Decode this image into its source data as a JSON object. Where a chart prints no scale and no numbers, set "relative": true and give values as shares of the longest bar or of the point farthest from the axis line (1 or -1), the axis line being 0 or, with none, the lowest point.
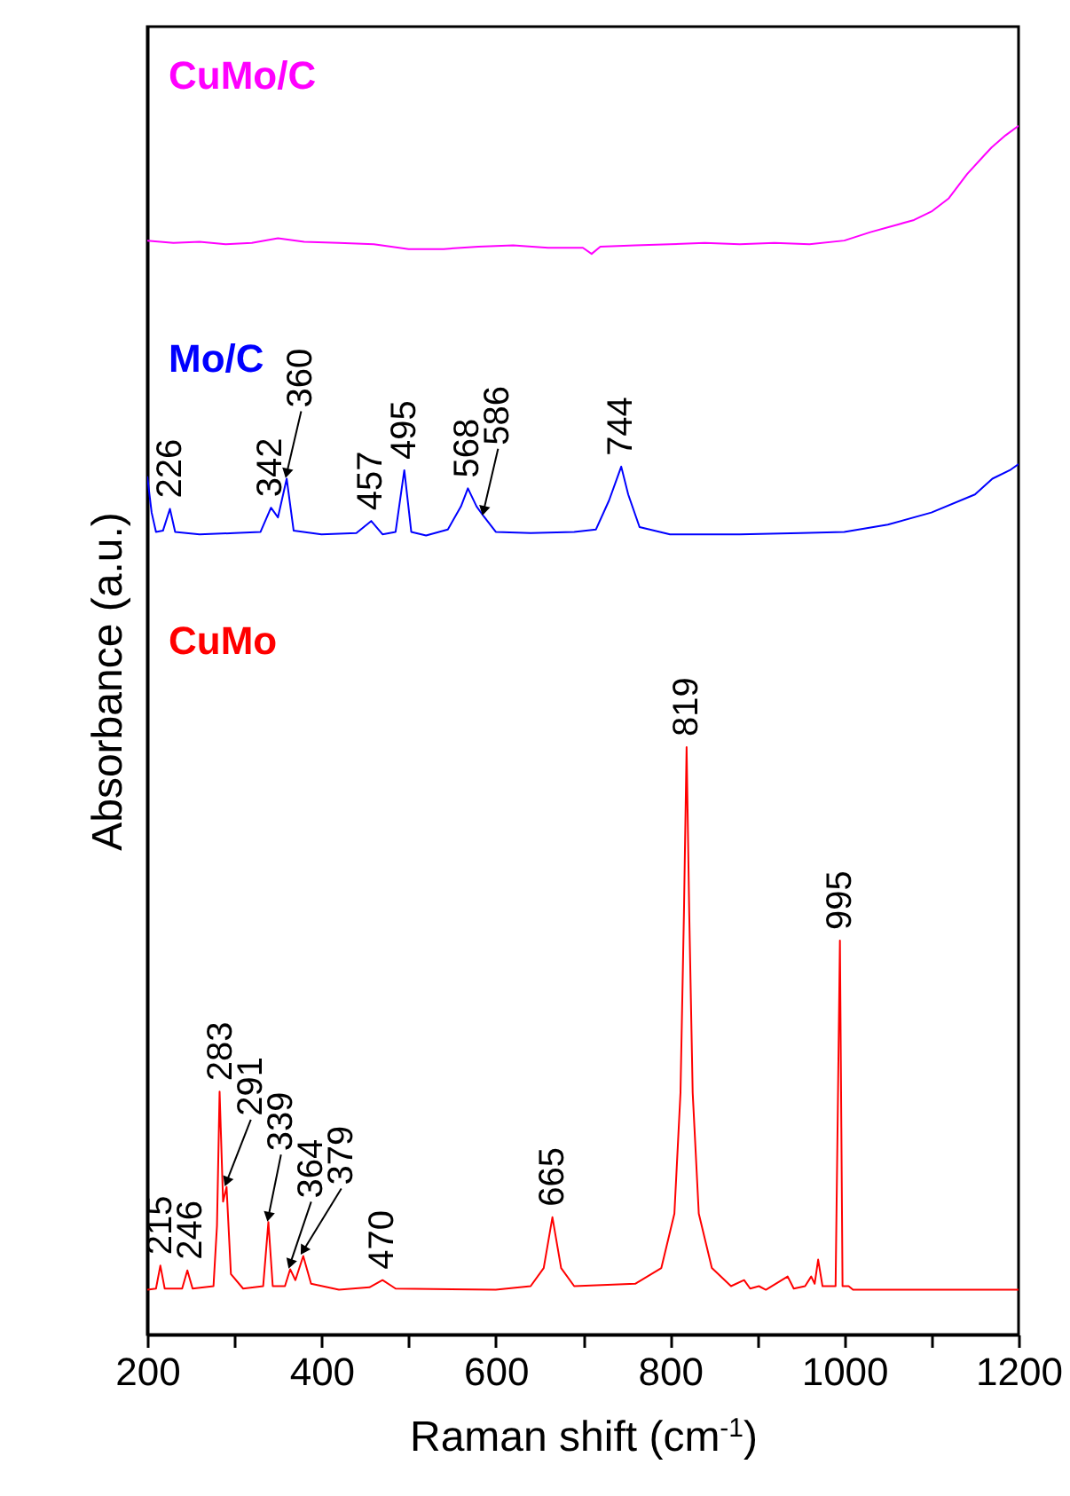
{
  "chart_data": {
    "type": "line",
    "xlabel": "Raman shift (cm$^{-1}$)",
    "ylabel": "Absorbance (a.u.)",
    "relative": true,
    "xlim": [
      200,
      1200
    ],
    "xticks": [
      200,
      {
        "value": 300,
        "label": null
      },
      400,
      {
        "value": 500,
        "label": null
      },
      600,
      {
        "value": 700,
        "label": null
      },
      800,
      {
        "value": 900,
        "label": null
      },
      1000,
      {
        "value": 1100,
        "label": null
      },
      1200
    ],
    "marker": "none",
    "line_style": "solid",
    "series": [
      {
        "name": "CuMo/C",
        "color": "#ff00ff",
        "x": [
          200,
          230,
          260,
          290,
          320,
          350,
          380,
          420,
          460,
          500,
          540,
          580,
          620,
          660,
          700,
          710,
          720,
          760,
          800,
          840,
          880,
          920,
          960,
          1000,
          1030,
          1060,
          1080,
          1100,
          1120,
          1141,
          1160,
          1169,
          1185,
          1200
        ],
        "values": [
          0.905,
          0.903,
          0.904,
          0.902,
          0.903,
          0.907,
          0.904,
          0.903,
          0.902,
          0.898,
          0.898,
          0.9,
          0.901,
          0.899,
          0.899,
          0.894,
          0.9,
          0.901,
          0.902,
          0.903,
          0.902,
          0.903,
          0.902,
          0.905,
          0.912,
          0.918,
          0.922,
          0.929,
          0.94,
          0.96,
          0.975,
          0.982,
          0.992,
          1.0
        ]
      },
      {
        "name": "Mo/C",
        "color": "#0000ff",
        "x": [
          200,
          205,
          210,
          218,
          226,
          232,
          260,
          300,
          330,
          342,
          350,
          360,
          368,
          400,
          440,
          457,
          470,
          485,
          495,
          503,
          520,
          545,
          560,
          568,
          578,
          586,
          600,
          640,
          690,
          715,
          730,
          744,
          752,
          765,
          800,
          880,
          950,
          1000,
          1050,
          1100,
          1150,
          1170,
          1190,
          1200
        ],
        "values": [
          0.71,
          0.68,
          0.664,
          0.665,
          0.683,
          0.664,
          0.662,
          0.663,
          0.664,
          0.684,
          0.676,
          0.708,
          0.665,
          0.662,
          0.663,
          0.673,
          0.662,
          0.664,
          0.715,
          0.664,
          0.661,
          0.666,
          0.685,
          0.7,
          0.685,
          0.677,
          0.664,
          0.663,
          0.664,
          0.666,
          0.69,
          0.718,
          0.695,
          0.668,
          0.662,
          0.662,
          0.663,
          0.664,
          0.67,
          0.68,
          0.695,
          0.708,
          0.715,
          0.72
        ]
      },
      {
        "name": "CuMo",
        "color": "#ff0000",
        "x": [
          200,
          210,
          215,
          220,
          240,
          246,
          252,
          276,
          280,
          283,
          287,
          291,
          296,
          310,
          333,
          339,
          344,
          358,
          364,
          370,
          379,
          388,
          420,
          455,
          470,
          485,
          600,
          640,
          655,
          665,
          675,
          690,
          760,
          790,
          805,
          812,
          816,
          819,
          822,
          826,
          833,
          848,
          870,
          885,
          892,
          902,
          910,
          935,
          942,
          955,
          962,
          966,
          970,
          975,
          990,
          995,
          998,
          1005,
          1010,
          1100,
          1200
        ],
        "values": [
          0.037,
          0.038,
          0.057,
          0.038,
          0.038,
          0.053,
          0.038,
          0.04,
          0.09,
          0.201,
          0.11,
          0.122,
          0.05,
          0.038,
          0.04,
          0.093,
          0.04,
          0.04,
          0.054,
          0.045,
          0.065,
          0.042,
          0.037,
          0.039,
          0.045,
          0.038,
          0.037,
          0.04,
          0.055,
          0.097,
          0.055,
          0.04,
          0.042,
          0.055,
          0.1,
          0.2,
          0.35,
          0.486,
          0.35,
          0.2,
          0.1,
          0.055,
          0.04,
          0.045,
          0.038,
          0.04,
          0.037,
          0.048,
          0.038,
          0.04,
          0.048,
          0.042,
          0.062,
          0.04,
          0.04,
          0.326,
          0.04,
          0.04,
          0.037,
          0.037,
          0.037
        ]
      }
    ],
    "annotations": [
      {
        "text": "226",
        "x": 226,
        "y": 0.683
      },
      {
        "text": "342",
        "x": 342,
        "y": 0.684
      },
      {
        "text": "360",
        "x": 360,
        "y": 0.708
      },
      {
        "text": "457",
        "x": 457,
        "y": 0.673
      },
      {
        "text": "495",
        "x": 495,
        "y": 0.715
      },
      {
        "text": "568",
        "x": 568,
        "y": 0.7
      },
      {
        "text": "586",
        "x": 586,
        "y": 0.677
      },
      {
        "text": "744",
        "x": 744,
        "y": 0.718
      },
      {
        "text": "215",
        "x": 215,
        "y": 0.057
      },
      {
        "text": "246",
        "x": 246,
        "y": 0.053
      },
      {
        "text": "283",
        "x": 283,
        "y": 0.201
      },
      {
        "text": "291",
        "x": 291,
        "y": 0.122
      },
      {
        "text": "339",
        "x": 339,
        "y": 0.093
      },
      {
        "text": "364",
        "x": 364,
        "y": 0.054
      },
      {
        "text": "379",
        "x": 379,
        "y": 0.065
      },
      {
        "text": "470",
        "x": 470,
        "y": 0.045
      },
      {
        "text": "665",
        "x": 665,
        "y": 0.097
      },
      {
        "text": "819",
        "x": 819,
        "y": 0.486
      },
      {
        "text": "995",
        "x": 995,
        "y": 0.326
      }
    ]
  }
}
